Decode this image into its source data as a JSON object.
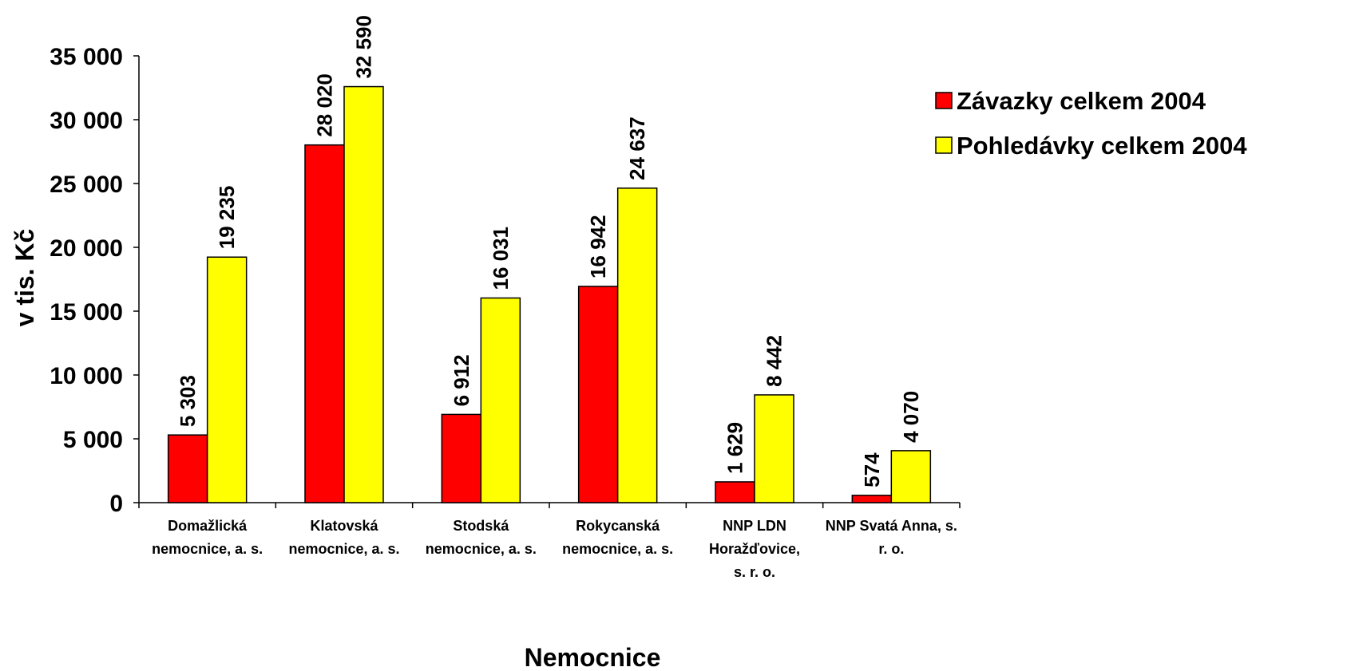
{
  "chart_data": {
    "type": "bar",
    "categories": [
      [
        "Domažlická",
        "nemocnice, a. s."
      ],
      [
        "Klatovská",
        "nemocnice, a. s."
      ],
      [
        "Stodská",
        "nemocnice, a. s."
      ],
      [
        "Rokycanská",
        "nemocnice, a. s."
      ],
      [
        "NNP LDN",
        "Horažďovice,",
        "s. r. o."
      ],
      [
        "NNP Svatá Anna, s.",
        "r. o."
      ]
    ],
    "series": [
      {
        "name": "Závazky celkem 2004",
        "color": "#ff0000",
        "values": [
          5303,
          28020,
          6912,
          16942,
          1629,
          574
        ],
        "labels": [
          "5 303",
          "28 020",
          "6 912",
          "16 942",
          "1 629",
          "574"
        ]
      },
      {
        "name": "Pohledávky celkem 2004",
        "color": "#ffff00",
        "values": [
          19235,
          32590,
          16031,
          24637,
          8442,
          4070
        ],
        "labels": [
          "19 235",
          "32 590",
          "16 031",
          "24 637",
          "8 442",
          "4 070"
        ]
      }
    ],
    "title": "",
    "xlabel": "Nemocnice",
    "ylabel": "v tis. Kč",
    "ylim": [
      0,
      35000
    ],
    "yticks": [
      0,
      5000,
      10000,
      15000,
      20000,
      25000,
      30000,
      35000
    ],
    "ytick_labels": [
      "0",
      "5 000",
      "10 000",
      "15 000",
      "20 000",
      "25 000",
      "30 000",
      "35 000"
    ],
    "grid": false,
    "legend": "right"
  }
}
